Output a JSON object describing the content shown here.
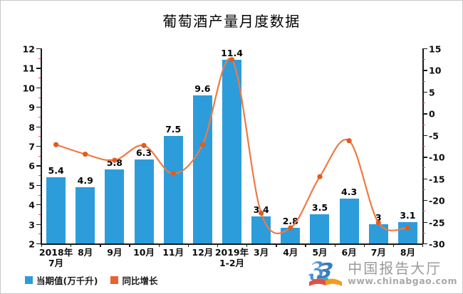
{
  "title": "葡萄酒产量月度数据",
  "chart_data": {
    "type": "bar",
    "subtype": "bar-line-combo",
    "title": "葡萄酒产量月度数据",
    "categories": [
      [
        "2018年",
        "7月"
      ],
      [
        "8月"
      ],
      [
        "9月"
      ],
      [
        "10月"
      ],
      [
        "11月"
      ],
      [
        "12月"
      ],
      [
        "2019年",
        "1-2月"
      ],
      [
        "3月"
      ],
      [
        "4月"
      ],
      [
        "5月"
      ],
      [
        "6月"
      ],
      [
        "7月"
      ],
      [
        "8月"
      ]
    ],
    "series": [
      {
        "name": "当期值(万千升)",
        "type": "bar",
        "axis": "left",
        "color": "#2D9CDB",
        "values": [
          5.4,
          4.9,
          5.8,
          6.3,
          7.5,
          9.6,
          11.4,
          3.4,
          2.8,
          3.5,
          4.3,
          3,
          3.1
        ]
      },
      {
        "name": "同比增长",
        "type": "line",
        "axis": "right",
        "color": "#ED7A45",
        "marker_color": "#E25C1E",
        "values": [
          -7.2,
          -9.4,
          -10.8,
          -7.4,
          -13.9,
          -7.2,
          12.4,
          -23.0,
          -26.4,
          -14.6,
          -6.3,
          -25.2,
          -26.4
        ]
      }
    ],
    "left_axis": {
      "min": 2,
      "max": 12,
      "ticks": [
        12,
        11,
        10,
        9,
        8,
        7,
        6,
        5,
        4,
        3,
        2
      ],
      "minor_step": 0.5,
      "minor_color": "#ff4d4d"
    },
    "right_axis": {
      "min": -30,
      "max": 15,
      "ticks": [
        15,
        10,
        5,
        0,
        -5,
        -10,
        -15,
        -20,
        -25,
        -30
      ],
      "minor_step": 2.5,
      "minor_color": "#ff4d4d"
    },
    "grid": false,
    "legend_position": "bottom-left",
    "legend": [
      {
        "label": "当期值(万千升)",
        "color": "#2D9CDB"
      },
      {
        "label": "同比增长",
        "color": "#E8642E"
      }
    ]
  },
  "watermark": {
    "brand": "中国报告大厅",
    "url": "www.chinabgao.com",
    "logo_icon": "open-book-with-double-3-monogram"
  }
}
